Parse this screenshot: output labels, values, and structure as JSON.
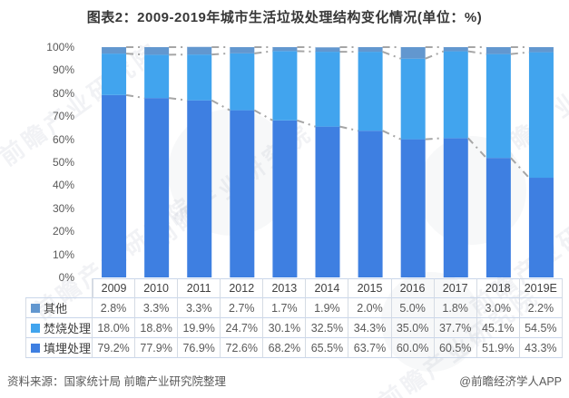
{
  "title": "图表2：2009-2019年城市生活垃圾处理结构变化情况(单位：%)",
  "chart_data": {
    "type": "bar",
    "stacked": true,
    "percent_stacked": true,
    "title": "图表2：2009-2019年城市生活垃圾处理结构变化情况(单位：%)",
    "categories": [
      "2009",
      "2010",
      "2011",
      "2012",
      "2013",
      "2014",
      "2015",
      "2016",
      "2017",
      "2018",
      "2019E"
    ],
    "series": [
      {
        "name": "填埋处理",
        "color": "#3E7FE1",
        "values": [
          79.2,
          77.9,
          76.9,
          72.6,
          68.2,
          65.5,
          63.7,
          60.0,
          60.5,
          51.9,
          43.3
        ]
      },
      {
        "name": "焚烧处理",
        "color": "#41A4EE",
        "values": [
          18.0,
          18.8,
          19.9,
          24.7,
          30.1,
          32.5,
          34.3,
          35.0,
          37.7,
          45.1,
          54.5
        ]
      },
      {
        "name": "其他",
        "color": "#6297CF",
        "values": [
          2.8,
          3.3,
          3.3,
          2.7,
          1.7,
          1.9,
          2.0,
          5.0,
          1.8,
          3.0,
          2.2
        ]
      }
    ],
    "y_ticks": [
      {
        "label": "100%",
        "value": 100
      },
      {
        "label": "90%",
        "value": 90
      },
      {
        "label": "80%",
        "value": 80
      },
      {
        "label": "70%",
        "value": 70
      },
      {
        "label": "60%",
        "value": 60
      },
      {
        "label": "50%",
        "value": 50
      },
      {
        "label": "40%",
        "value": 40
      },
      {
        "label": "30%",
        "value": 30
      },
      {
        "label": "20%",
        "value": 20
      },
      {
        "label": "10%",
        "value": 10
      },
      {
        "label": "0%",
        "value": 0
      }
    ],
    "ylim": [
      0,
      100
    ],
    "grid": false,
    "series_lines": true,
    "series_line_color": "#A6A6A6",
    "legend_position": "table-left"
  },
  "table": {
    "header": [
      "2009",
      "2010",
      "2011",
      "2012",
      "2013",
      "2014",
      "2015",
      "2016",
      "2017",
      "2018",
      "2019E"
    ],
    "rows": [
      {
        "label": "其他",
        "color": "#6297CF",
        "values": [
          "2.8%",
          "3.3%",
          "3.3%",
          "2.7%",
          "1.7%",
          "1.9%",
          "2.0%",
          "5.0%",
          "1.8%",
          "3.0%",
          "2.2%"
        ]
      },
      {
        "label": "焚烧处理",
        "color": "#41A4EE",
        "values": [
          "18.0%",
          "18.8%",
          "19.9%",
          "24.7%",
          "30.1%",
          "32.5%",
          "34.3%",
          "35.0%",
          "37.7%",
          "45.1%",
          "54.5%"
        ]
      },
      {
        "label": "填埋处理",
        "color": "#3E7FE1",
        "values": [
          "79.2%",
          "77.9%",
          "76.9%",
          "72.6%",
          "68.2%",
          "65.5%",
          "63.7%",
          "60.0%",
          "60.5%",
          "51.9%",
          "43.3%"
        ]
      }
    ]
  },
  "footer": {
    "source": "资料来源：国家统计局 前瞻产业研究院整理",
    "credit": "@前瞻经济学人APP"
  },
  "watermark": {
    "text": "前瞻产业研究院"
  }
}
